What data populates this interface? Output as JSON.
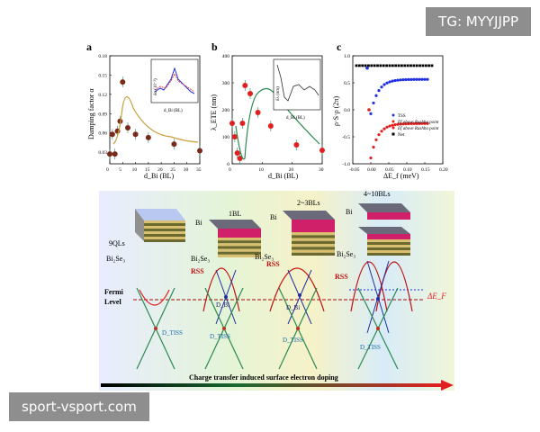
{
  "watermarks": {
    "top": "TG: MYYJJPP",
    "bottom": "sport-vsport.com"
  },
  "colors": {
    "maroon": "#7a2a1a",
    "red": "#e02020",
    "green": "#2a8a50",
    "blue": "#2030e0",
    "gold": "#c8a040"
  },
  "panels": {
    "a": {
      "letter": "a",
      "ylabel": "Damping factor α",
      "xlabel": "d_Bi (BL)",
      "inset_xlabel": "d_Bi (BL)",
      "inset_ylabel": "δα (10⁻²)"
    },
    "b": {
      "letter": "b",
      "ylabel": "λ_ETE (nm)",
      "xlabel": "d_Bi (BL)",
      "inset_xlabel": "d_Bi (BL)",
      "inset_ylabel": "δλ (nm)"
    },
    "c": {
      "letter": "c",
      "ylabel": "ρ·S·ρ (2π)",
      "xlabel": "ΔE_f (meV)"
    }
  },
  "chart_data": [
    {
      "panel": "a",
      "type": "scatter",
      "xlim": [
        0,
        35
      ],
      "ylim": [
        0.015,
        0.18
      ],
      "xticks": [
        "0",
        "5",
        "10",
        "15",
        "20",
        "25",
        "30",
        "35"
      ],
      "yticks": [
        "0.03",
        "0.06",
        "0.09",
        "0.12",
        "0.15",
        "0.18"
      ],
      "series": [
        {
          "x": [
            0,
            1,
            2,
            3,
            4,
            5,
            7,
            10,
            15,
            25,
            35
          ],
          "y": [
            0.03,
            0.06,
            0.03,
            0.065,
            0.08,
            0.14,
            0.07,
            0.06,
            0.055,
            0.045,
            0.035
          ]
        }
      ]
    },
    {
      "panel": "b",
      "type": "scatter",
      "xlim": [
        0,
        35
      ],
      "ylim": [
        0,
        400
      ],
      "xticks": [
        "0",
        "10",
        "20",
        "30"
      ],
      "yticks": [
        "0",
        "100",
        "200",
        "300",
        "400"
      ],
      "series": [
        {
          "x": [
            0,
            1,
            2,
            3,
            4,
            5,
            7,
            10,
            15,
            25,
            35
          ],
          "y": [
            150,
            100,
            40,
            20,
            150,
            290,
            260,
            190,
            140,
            70,
            50
          ]
        }
      ]
    },
    {
      "panel": "c",
      "type": "scatter",
      "xlim": [
        -0.05,
        0.2
      ],
      "ylim": [
        -1.0,
        1.2
      ],
      "xticks": [
        "-0.05",
        "0.00",
        "0.05",
        "0.10",
        "0.15",
        "0.20"
      ],
      "yticks": [
        "-1.0",
        "-0.5",
        "0.0",
        "0.5",
        "1.0"
      ],
      "legend": [
        "TSS",
        "Ef above Rashba point",
        "Ef above Rashba point",
        "Net"
      ],
      "series": [
        {
          "name": "Net",
          "y_const": 1.0
        }
      ]
    }
  ],
  "schematic": {
    "labels": {
      "qls": "9QLs",
      "bi2se3": "Bi₂Se₃",
      "bi": "Bi",
      "bl1": "1BL",
      "bl23": "2~3BLs",
      "bl410": "4~10BLs",
      "rss": "RSS",
      "fermi": "Fermi",
      "level": "Level",
      "dtss": "D_TISS",
      "drss": "D_Bi",
      "deltaef": "ΔE_F",
      "caption": "Charge transfer induced surface electron doping"
    }
  }
}
